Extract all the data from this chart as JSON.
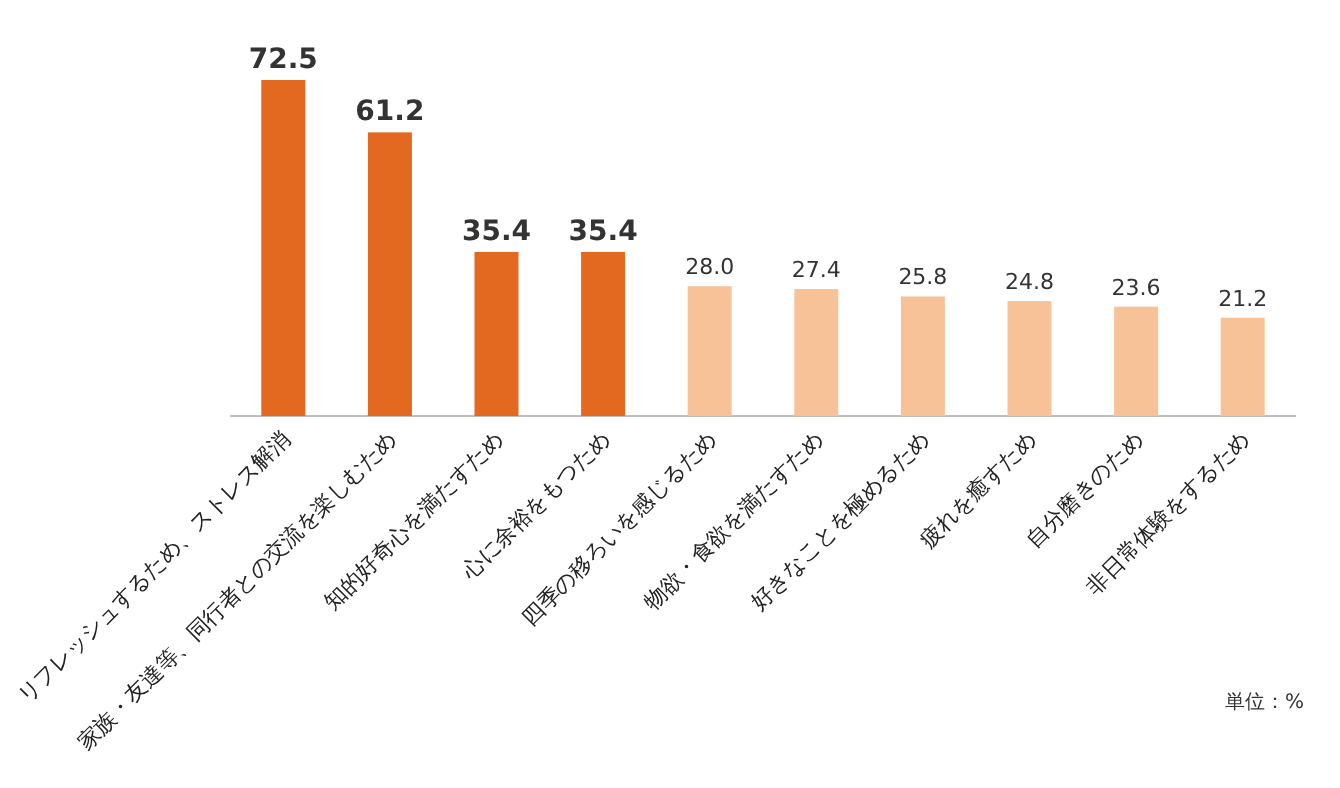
{
  "chart_data": {
    "type": "bar",
    "categories": [
      "リフレッシュするため、ストレス解消",
      "家族・友達等、同行者との交流を楽しむため",
      "知的好奇心を満たすため",
      "心に余裕をもつため",
      "四季の移ろいを感じるため",
      "物欲・食欲を満たすため",
      "好きなことを極めるため",
      "疲れを癒すため",
      "自分磨きのため",
      "非日常体験をするため"
    ],
    "values": [
      72.5,
      61.2,
      35.4,
      35.4,
      28.0,
      27.4,
      25.8,
      24.8,
      23.6,
      21.2
    ],
    "colors": [
      "#e2691f",
      "#e2691f",
      "#e2691f",
      "#e2691f",
      "#f8c298",
      "#f8c298",
      "#f8c298",
      "#f8c298",
      "#f8c298",
      "#f8c298"
    ],
    "value_labels": [
      "72.5",
      "61.2",
      "35.4",
      "35.4",
      "28.0",
      "27.4",
      "25.8",
      "24.8",
      "23.6",
      "21.2"
    ],
    "annotations": [
      "単位：%"
    ]
  }
}
